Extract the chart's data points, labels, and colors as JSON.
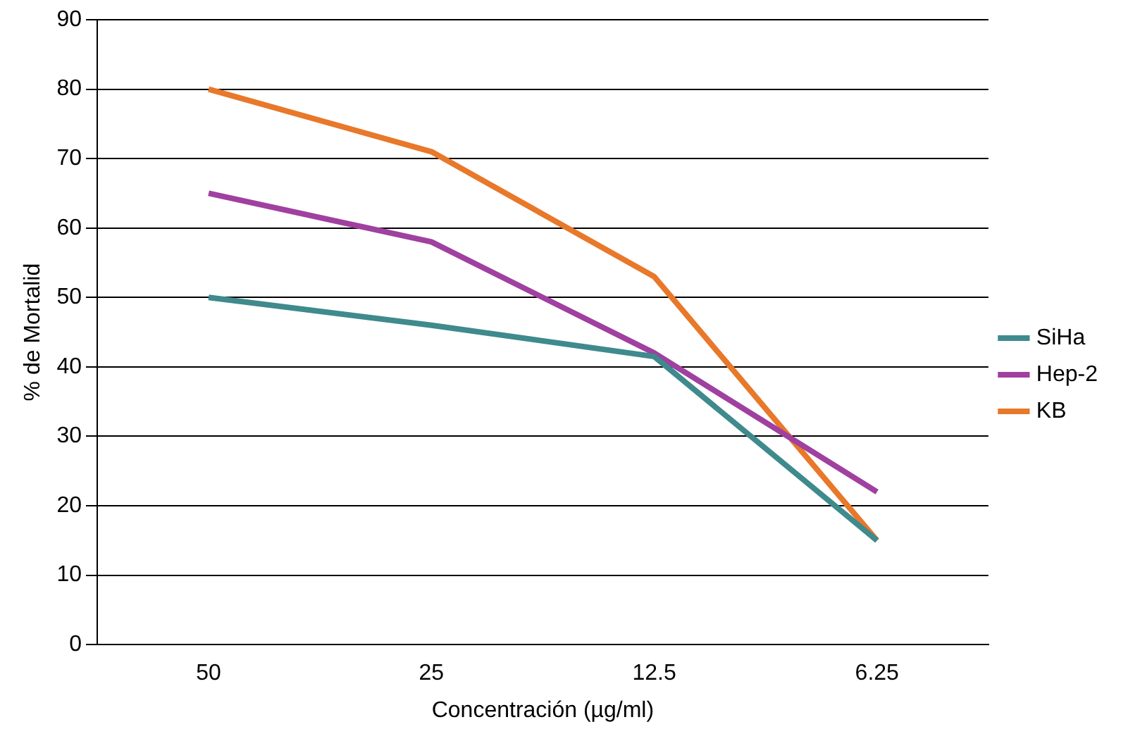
{
  "chart_data": {
    "type": "line",
    "xlabel": "Concentración (µg/ml)",
    "ylabel": "% de Mortalid",
    "categories": [
      "50",
      "25",
      "12.5",
      "6.25"
    ],
    "series": [
      {
        "name": "SiHa",
        "color": "#3f8a8c",
        "values": [
          50,
          46,
          41.5,
          15
        ]
      },
      {
        "name": "Hep-2",
        "color": "#a040a0",
        "values": [
          65,
          58,
          42,
          22
        ]
      },
      {
        "name": "KB",
        "color": "#e8782a",
        "values": [
          80,
          71,
          53,
          15
        ]
      }
    ],
    "ylim": [
      0,
      90
    ],
    "yticks": [
      0,
      10,
      20,
      30,
      40,
      50,
      60,
      70,
      80,
      90
    ],
    "grid": "y",
    "legend": "right",
    "marker": "none",
    "line_style": "solid"
  }
}
